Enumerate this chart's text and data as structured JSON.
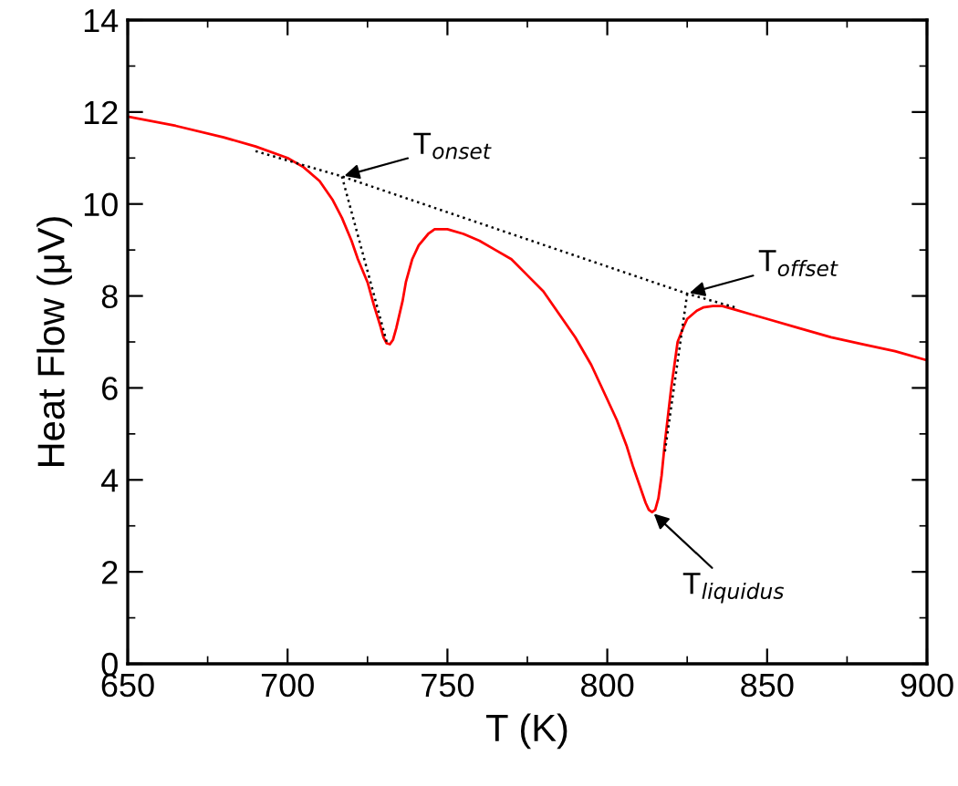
{
  "chart_data": {
    "type": "line",
    "xlabel": "T (K)",
    "ylabel": "Heat Flow (μV)",
    "xlim": [
      650,
      900
    ],
    "ylim": [
      0,
      14
    ],
    "xticks": [
      650,
      700,
      750,
      800,
      850,
      900
    ],
    "yticks": [
      0,
      2,
      4,
      6,
      8,
      10,
      12,
      14
    ],
    "grid": false,
    "legend": false,
    "marker": "none",
    "series": [
      {
        "color": "#ff0000",
        "line_style": "solid",
        "x": [
          650,
          665,
          680,
          690,
          700,
          705,
          710,
          714,
          717,
          720,
          722,
          725,
          727,
          729,
          730,
          731,
          732,
          733,
          734,
          736,
          737,
          739,
          741,
          744,
          746,
          750,
          755,
          760,
          765,
          770,
          775,
          780,
          785,
          790,
          795,
          800,
          803,
          806,
          808,
          810,
          812,
          813,
          814,
          815,
          816,
          817,
          818,
          819,
          820,
          821,
          822,
          824,
          825,
          828,
          830,
          833,
          836,
          840,
          845,
          850,
          860,
          870,
          880,
          890,
          900
        ],
        "values": [
          11.9,
          11.7,
          11.45,
          11.25,
          11.0,
          10.8,
          10.5,
          10.1,
          9.7,
          9.2,
          8.8,
          8.3,
          7.8,
          7.35,
          7.1,
          6.97,
          6.95,
          7.05,
          7.3,
          7.9,
          8.3,
          8.8,
          9.1,
          9.35,
          9.45,
          9.45,
          9.35,
          9.2,
          9.0,
          8.8,
          8.45,
          8.1,
          7.6,
          7.1,
          6.5,
          5.75,
          5.3,
          4.75,
          4.3,
          3.9,
          3.5,
          3.35,
          3.3,
          3.35,
          3.6,
          4.1,
          4.8,
          5.4,
          6.0,
          6.5,
          7.0,
          7.35,
          7.5,
          7.68,
          7.75,
          7.78,
          7.78,
          7.7,
          7.6,
          7.5,
          7.3,
          7.1,
          6.95,
          6.8,
          6.6
        ]
      },
      {
        "color": "#000000",
        "line_style": "dotted",
        "x": [
          690,
          717,
          825,
          840
        ],
        "values": [
          11.15,
          10.6,
          8.05,
          7.75
        ]
      },
      {
        "color": "#000000",
        "line_style": "dotted",
        "x": [
          717,
          731
        ],
        "values": [
          10.6,
          7.0
        ]
      },
      {
        "color": "#000000",
        "line_style": "dotted",
        "x": [
          825,
          818
        ],
        "values": [
          8.05,
          4.6
        ]
      }
    ],
    "annotations": [
      {
        "text": "T$_{onset}$",
        "x": 717,
        "y": 10.6
      },
      {
        "text": "T$_{offset}$",
        "x": 825,
        "y": 8.05
      },
      {
        "text": "T$_{liquidus}$",
        "x": 814,
        "y": 3.3
      }
    ]
  }
}
